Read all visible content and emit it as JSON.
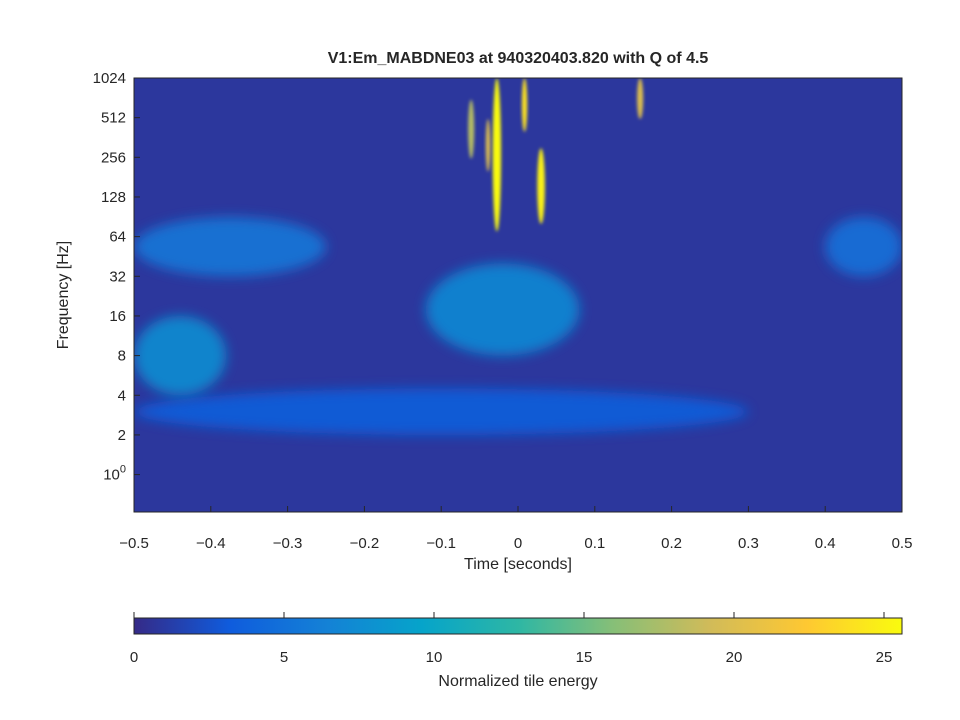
{
  "chart_data": {
    "type": "heatmap",
    "title": "V1:Em_MABDNE03 at 940320403.820 with Q of 4.5",
    "xlabel": "Time [seconds]",
    "ylabel": "Frequency [Hz]",
    "xlim": [
      -0.5,
      0.5
    ],
    "x_ticks": [
      {
        "value": -0.5,
        "label": "−0.5"
      },
      {
        "value": -0.4,
        "label": "−0.4"
      },
      {
        "value": -0.3,
        "label": "−0.3"
      },
      {
        "value": -0.2,
        "label": "−0.2"
      },
      {
        "value": -0.1,
        "label": "−0.1"
      },
      {
        "value": 0,
        "label": "0"
      },
      {
        "value": 0.1,
        "label": "0.1"
      },
      {
        "value": 0.2,
        "label": "0.2"
      },
      {
        "value": 0.3,
        "label": "0.3"
      },
      {
        "value": 0.4,
        "label": "0.4"
      },
      {
        "value": 0.5,
        "label": "0.5"
      }
    ],
    "ylim_hz": [
      0.52,
      1024
    ],
    "y_scale": "log2",
    "y_ticks": [
      {
        "value": 1024,
        "label": "1024"
      },
      {
        "value": 512,
        "label": "512"
      },
      {
        "value": 256,
        "label": "256"
      },
      {
        "value": 128,
        "label": "128"
      },
      {
        "value": 64,
        "label": "64"
      },
      {
        "value": 32,
        "label": "32"
      },
      {
        "value": 16,
        "label": "16"
      },
      {
        "value": 8,
        "label": "8"
      },
      {
        "value": 4,
        "label": "4"
      },
      {
        "value": 2,
        "label": "2"
      },
      {
        "value": 1,
        "label": "10",
        "exp": "0"
      }
    ],
    "colorbar": {
      "label": "Normalized tile energy",
      "range": [
        0,
        25.6
      ],
      "colormap": "parula",
      "ticks": [
        {
          "value": 0,
          "label": "0"
        },
        {
          "value": 5,
          "label": "5"
        },
        {
          "value": 10,
          "label": "10"
        },
        {
          "value": 15,
          "label": "15"
        },
        {
          "value": 20,
          "label": "20"
        },
        {
          "value": 25,
          "label": "25"
        }
      ],
      "stops": [
        "#352a87",
        "#0f5cdd",
        "#1481d6",
        "#06a4ca",
        "#2eb7a4",
        "#87bf77",
        "#d1bb59",
        "#fec832",
        "#f9fb0e"
      ]
    },
    "background_energy": 0.8,
    "features": [
      {
        "name": "low-band-2-4Hz",
        "t": [
          -0.5,
          0.3
        ],
        "f_hz": [
          2,
          4.5
        ],
        "energy": 3.5
      },
      {
        "name": "blob-6Hz-left",
        "t": [
          -0.5,
          -0.38
        ],
        "f_hz": [
          4,
          16
        ],
        "energy": 7.5
      },
      {
        "name": "blob-16Hz-center",
        "t": [
          -0.12,
          0.08
        ],
        "f_hz": [
          8,
          40
        ],
        "energy": 7
      },
      {
        "name": "band-40-64Hz",
        "t": [
          -0.5,
          -0.25
        ],
        "f_hz": [
          32,
          90
        ],
        "energy": 5.5
      },
      {
        "name": "band-40-64Hz-right",
        "t": [
          0.4,
          0.5
        ],
        "f_hz": [
          32,
          90
        ],
        "energy": 5
      },
      {
        "name": "glitch-1",
        "t": [
          -0.033,
          -0.022
        ],
        "f_hz": [
          70,
          1024
        ],
        "energy": 25.6
      },
      {
        "name": "glitch-2",
        "t": [
          0.025,
          0.035
        ],
        "f_hz": [
          80,
          300
        ],
        "energy": 25
      },
      {
        "name": "glitch-3",
        "t": [
          0.005,
          0.012
        ],
        "f_hz": [
          400,
          1024
        ],
        "energy": 24
      },
      {
        "name": "glitch-4",
        "t": [
          0.155,
          0.163
        ],
        "f_hz": [
          500,
          1024
        ],
        "energy": 20
      },
      {
        "name": "glitch-5",
        "t": [
          -0.065,
          -0.057
        ],
        "f_hz": [
          250,
          700
        ],
        "energy": 18
      },
      {
        "name": "glitch-6",
        "t": [
          -0.042,
          -0.036
        ],
        "f_hz": [
          200,
          500
        ],
        "energy": 20
      }
    ]
  }
}
